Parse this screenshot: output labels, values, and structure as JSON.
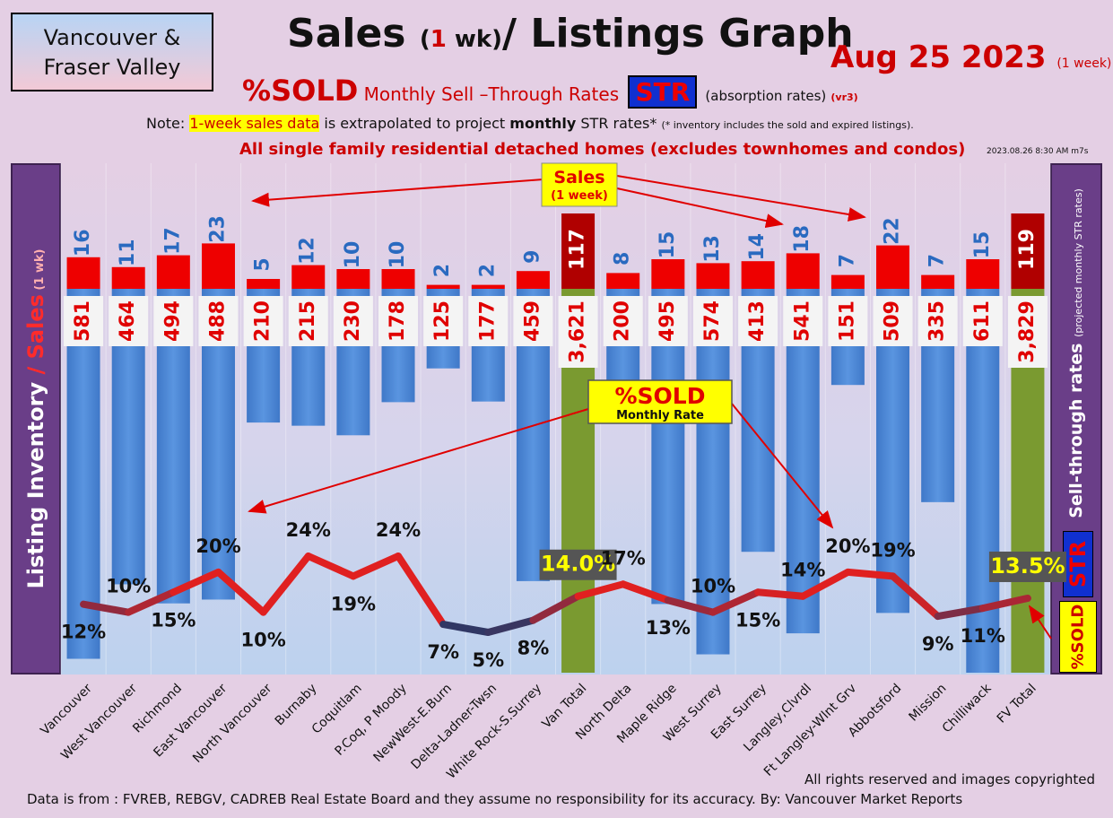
{
  "header": {
    "region_line1": "Vancouver &",
    "region_line2": "Fraser Valley",
    "title_a": "Sales ",
    "title_b": "(",
    "title_c": "1",
    "title_d": " wk)",
    "title_e": "/ Listings Graph",
    "date": "Aug 25  2023",
    "date_sub": "(1 week)",
    "sold_big": "%SOLD",
    "sold_desc": " Monthly Sell –Through Rates ",
    "str": "STR",
    "absorption": "(absorption rates)",
    "version": "(vr3)",
    "note_pre": "Note: ",
    "note_hl": "1-week sales data",
    "note_mid": " is extrapolated to project ",
    "note_bold": "monthly",
    "note_post": " STR rates* ",
    "note_tiny": "(* inventory includes the sold and expired listings).",
    "scope": "All single family residential detached homes (excludes townhomes and condos)",
    "stamp": "2023.08.26 8:30 AM m7s"
  },
  "left_axis": {
    "label_a": "Listing Inventory ",
    "label_b": "/ Sales",
    "label_c": " (1 wk)"
  },
  "right_axis": {
    "label_a": "Sell-through rates ",
    "label_b": "(projected monthly STR rates)",
    "str": "STR",
    "sold": "%SOLD"
  },
  "callouts": {
    "sales_a": "Sales",
    "sales_b": "(1 week)",
    "sold_a": "%SOLD",
    "sold_b": "Monthly Rate"
  },
  "footer": {
    "rights": "All rights reserved and  images copyrighted",
    "source": "Data is from : FVREB, REBGV, CADREB Real Estate Board and they assume no responsibility for its accuracy. By: Vancouver Market Reports"
  },
  "colors": {
    "sales": "#ee0000",
    "sales_total": "#b00000",
    "inventory": "#4a86d4",
    "inventory_total": "#7a9a30",
    "line_high": "#e02020",
    "line_low": "#1c3a6c"
  },
  "chart_data": {
    "type": "bar",
    "categories": [
      "Vancouver",
      "West Vancouver",
      "Richmond",
      "East Vancouver",
      "North Vancouver",
      "Burnaby",
      "Coquitlam",
      "P.Coq, P Moody",
      "NewWest-E.Burn",
      "Delta-Ladner-Twsn",
      "White Rock-S.Surrey",
      "Van Total",
      "North Delta",
      "Maple Ridge",
      "West Surrey",
      "East Surrey",
      "Langley,Clvrdl",
      "Ft Langley-Wlnt Grv",
      "Abbotsford",
      "Mission",
      "Chilliwack",
      "FV Total"
    ],
    "series": [
      {
        "name": "Sales",
        "values": [
          16,
          11,
          17,
          23,
          5,
          12,
          10,
          10,
          2,
          2,
          9,
          117,
          8,
          15,
          13,
          14,
          18,
          7,
          22,
          7,
          15,
          119
        ]
      },
      {
        "name": "Listing Inventory",
        "values": [
          581,
          464,
          494,
          488,
          210,
          215,
          230,
          178,
          125,
          177,
          459,
          3621,
          200,
          495,
          574,
          413,
          541,
          151,
          509,
          335,
          611,
          3829
        ]
      },
      {
        "name": "%SOLD",
        "values": [
          12,
          10,
          15,
          20,
          10,
          24,
          19,
          24,
          7,
          5,
          8,
          14.0,
          17,
          13,
          10,
          15,
          14,
          20,
          19,
          9,
          11,
          13.5
        ]
      }
    ],
    "inventory_labels": [
      "581",
      "464",
      "494",
      "488",
      "210",
      "215",
      "230",
      "178",
      "125",
      "177",
      "459",
      "3,621",
      "200",
      "495",
      "574",
      "413",
      "541",
      "151",
      "509",
      "335",
      "611",
      "3,829"
    ],
    "sold_labels": [
      "12%",
      "10%",
      "15%",
      "20%",
      "10%",
      "24%",
      "19%",
      "24%",
      "7%",
      "5%",
      "8%",
      "14.0%",
      "17%",
      "13%",
      "10%",
      "15%",
      "14%",
      "20%",
      "19%",
      "9%",
      "11%",
      "13.5%"
    ],
    "sold_label_side": [
      "below",
      "above",
      "below",
      "above",
      "below",
      "above",
      "below",
      "above",
      "below",
      "below",
      "below",
      "above",
      "above",
      "below",
      "above",
      "below",
      "above",
      "above",
      "above",
      "below",
      "below",
      "above"
    ],
    "totals": [
      "Van Total",
      "FV Total"
    ]
  }
}
